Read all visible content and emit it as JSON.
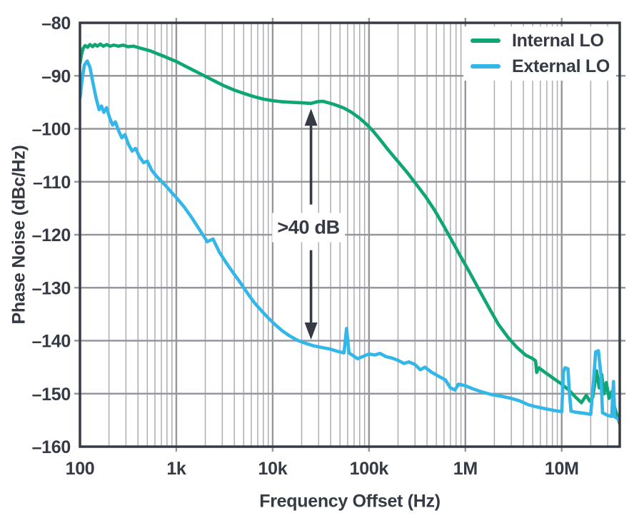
{
  "text_color": "#353a45",
  "chart_data": {
    "type": "line",
    "title": "",
    "xlabel": "Frequency Offset (Hz)",
    "ylabel": "Phase Noise (dBc/Hz)",
    "x_scale": "log",
    "xlim": [
      100,
      40000000
    ],
    "ylim": [
      -160,
      -80
    ],
    "grid": {
      "enabled": true,
      "minor_color": "#abadb1",
      "major_color": "#95979c"
    },
    "legend": {
      "position": "top-right-inside"
    },
    "x_ticks": [
      {
        "value": 100,
        "label": "100"
      },
      {
        "value": 1000,
        "label": "1k"
      },
      {
        "value": 10000,
        "label": "10k"
      },
      {
        "value": 100000,
        "label": "100k"
      },
      {
        "value": 1000000,
        "label": "1M"
      },
      {
        "value": 10000000,
        "label": "10M"
      }
    ],
    "y_ticks": [
      {
        "value": -80,
        "label": "–80"
      },
      {
        "value": -90,
        "label": "–90"
      },
      {
        "value": -100,
        "label": "–100"
      },
      {
        "value": -110,
        "label": "–110"
      },
      {
        "value": -120,
        "label": "–120"
      },
      {
        "value": -130,
        "label": "–130"
      },
      {
        "value": -140,
        "label": "–140"
      },
      {
        "value": -150,
        "label": "–150"
      },
      {
        "value": -160,
        "label": "–160"
      }
    ],
    "annotation": {
      "label": ">40 dB",
      "x": 25000,
      "top_db": -96.2,
      "bottom_db": -139.8,
      "label_db": -118.6,
      "color": "#353a45"
    },
    "series": [
      {
        "name": "Internal LO",
        "color": "#10a674",
        "points": [
          [
            100,
            -87.6
          ],
          [
            104,
            -85.9
          ],
          [
            108,
            -84.8
          ],
          [
            113,
            -84.3
          ],
          [
            120,
            -84.6
          ],
          [
            127,
            -84.1
          ],
          [
            135,
            -84.5
          ],
          [
            143,
            -84.1
          ],
          [
            152,
            -84.4
          ],
          [
            163,
            -84.0
          ],
          [
            175,
            -84.4
          ],
          [
            190,
            -84.1
          ],
          [
            205,
            -84.4
          ],
          [
            225,
            -84.2
          ],
          [
            250,
            -84.4
          ],
          [
            280,
            -84.2
          ],
          [
            315,
            -84.5
          ],
          [
            360,
            -84.4
          ],
          [
            410,
            -84.7
          ],
          [
            470,
            -85.0
          ],
          [
            540,
            -85.3
          ],
          [
            630,
            -85.8
          ],
          [
            740,
            -86.3
          ],
          [
            860,
            -86.8
          ],
          [
            1000,
            -87.3
          ],
          [
            1250,
            -88.2
          ],
          [
            1600,
            -89.2
          ],
          [
            2000,
            -90.1
          ],
          [
            2500,
            -91.0
          ],
          [
            3150,
            -91.9
          ],
          [
            4000,
            -92.7
          ],
          [
            5000,
            -93.3
          ],
          [
            6300,
            -93.9
          ],
          [
            8000,
            -94.4
          ],
          [
            10000,
            -94.7
          ],
          [
            12500,
            -94.9
          ],
          [
            16000,
            -95.0
          ],
          [
            20000,
            -95.1
          ],
          [
            25000,
            -95.2
          ],
          [
            29000,
            -94.9
          ],
          [
            33000,
            -94.8
          ],
          [
            38000,
            -95.1
          ],
          [
            45000,
            -95.5
          ],
          [
            55000,
            -96.1
          ],
          [
            66000,
            -96.9
          ],
          [
            80000,
            -98.0
          ],
          [
            95000,
            -99.2
          ],
          [
            110000,
            -100.4
          ],
          [
            130000,
            -102.0
          ],
          [
            160000,
            -104.1
          ],
          [
            200000,
            -106.2
          ],
          [
            250000,
            -108.3
          ],
          [
            310000,
            -110.5
          ],
          [
            390000,
            -112.9
          ],
          [
            480000,
            -115.4
          ],
          [
            590000,
            -118.2
          ],
          [
            720000,
            -121.0
          ],
          [
            880000,
            -123.9
          ],
          [
            1100000,
            -127.0
          ],
          [
            1400000,
            -130.5
          ],
          [
            1750000,
            -133.7
          ],
          [
            2200000,
            -136.9
          ],
          [
            2750000,
            -139.3
          ],
          [
            3400000,
            -141.2
          ],
          [
            4200000,
            -142.7
          ],
          [
            5000000,
            -143.4
          ],
          [
            5350000,
            -143.8
          ],
          [
            5500000,
            -146.0
          ],
          [
            5800000,
            -145.1
          ],
          [
            6500000,
            -145.8
          ],
          [
            7500000,
            -146.6
          ],
          [
            8800000,
            -147.5
          ],
          [
            10000000,
            -148.2
          ],
          [
            12000000,
            -149.4
          ],
          [
            14000000,
            -150.7
          ],
          [
            16000000,
            -151.7
          ],
          [
            18000000,
            -150.3
          ],
          [
            19500000,
            -151.4
          ],
          [
            21000000,
            -150.7
          ],
          [
            23000000,
            -145.7
          ],
          [
            24500000,
            -148.9
          ],
          [
            26000000,
            -146.4
          ],
          [
            27500000,
            -150.0
          ],
          [
            29000000,
            -147.9
          ],
          [
            31000000,
            -150.9
          ],
          [
            33000000,
            -149.6
          ],
          [
            35000000,
            -152.3
          ],
          [
            37000000,
            -153.7
          ],
          [
            40000000,
            -155.7
          ]
        ]
      },
      {
        "name": "External LO",
        "color": "#33b6e8",
        "points": [
          [
            100,
            -94.2
          ],
          [
            105,
            -90.8
          ],
          [
            111,
            -88.0
          ],
          [
            119,
            -87.2
          ],
          [
            127,
            -88.4
          ],
          [
            136,
            -91.2
          ],
          [
            147,
            -94.2
          ],
          [
            158,
            -96.4
          ],
          [
            167,
            -95.7
          ],
          [
            177,
            -96.9
          ],
          [
            189,
            -96.0
          ],
          [
            203,
            -97.9
          ],
          [
            218,
            -99.3
          ],
          [
            233,
            -98.7
          ],
          [
            252,
            -100.4
          ],
          [
            272,
            -101.7
          ],
          [
            293,
            -101.1
          ],
          [
            318,
            -102.9
          ],
          [
            348,
            -104.2
          ],
          [
            378,
            -103.7
          ],
          [
            415,
            -105.3
          ],
          [
            458,
            -106.4
          ],
          [
            500,
            -106.1
          ],
          [
            555,
            -107.8
          ],
          [
            620,
            -108.9
          ],
          [
            700,
            -109.9
          ],
          [
            800,
            -111.0
          ],
          [
            900,
            -112.1
          ],
          [
            1000,
            -113.0
          ],
          [
            1200,
            -114.7
          ],
          [
            1450,
            -116.8
          ],
          [
            1750,
            -119.1
          ],
          [
            2100,
            -121.3
          ],
          [
            2400,
            -120.8
          ],
          [
            2800,
            -123.3
          ],
          [
            3300,
            -125.3
          ],
          [
            3900,
            -127.2
          ],
          [
            4600,
            -129.0
          ],
          [
            5500,
            -131.1
          ],
          [
            6500,
            -132.9
          ],
          [
            7700,
            -134.4
          ],
          [
            9000,
            -135.7
          ],
          [
            10500,
            -136.9
          ],
          [
            12500,
            -138.1
          ],
          [
            15000,
            -139.1
          ],
          [
            18000,
            -139.9
          ],
          [
            22000,
            -140.5
          ],
          [
            27000,
            -141.0
          ],
          [
            33000,
            -141.3
          ],
          [
            40000,
            -141.6
          ],
          [
            47000,
            -142.0
          ],
          [
            55000,
            -142.3
          ],
          [
            58500,
            -137.7
          ],
          [
            62000,
            -142.3
          ],
          [
            68000,
            -142.8
          ],
          [
            76000,
            -143.4
          ],
          [
            86000,
            -143.0
          ],
          [
            100000,
            -142.5
          ],
          [
            115000,
            -142.7
          ],
          [
            130000,
            -142.4
          ],
          [
            150000,
            -143.0
          ],
          [
            175000,
            -143.3
          ],
          [
            200000,
            -143.7
          ],
          [
            230000,
            -144.3
          ],
          [
            260000,
            -144.0
          ],
          [
            300000,
            -144.5
          ],
          [
            340000,
            -145.5
          ],
          [
            380000,
            -145.0
          ],
          [
            450000,
            -146.0
          ],
          [
            550000,
            -146.9
          ],
          [
            620000,
            -147.4
          ],
          [
            700000,
            -148.9
          ],
          [
            780000,
            -149.3
          ],
          [
            850000,
            -148.2
          ],
          [
            1000000,
            -148.5
          ],
          [
            1200000,
            -149.1
          ],
          [
            1500000,
            -149.7
          ],
          [
            1900000,
            -150.2
          ],
          [
            2400000,
            -150.5
          ],
          [
            3000000,
            -150.9
          ],
          [
            3700000,
            -151.4
          ],
          [
            4500000,
            -152.1
          ],
          [
            5500000,
            -152.5
          ],
          [
            7000000,
            -152.9
          ],
          [
            8500000,
            -153.2
          ],
          [
            10000000,
            -153.4
          ],
          [
            10400000,
            -146.0
          ],
          [
            10800000,
            -145.1
          ],
          [
            11600000,
            -145.3
          ],
          [
            12000000,
            -149.6
          ],
          [
            12500000,
            -153.3
          ],
          [
            14000000,
            -153.5
          ],
          [
            17000000,
            -153.7
          ],
          [
            20000000,
            -153.9
          ],
          [
            21500000,
            -147.1
          ],
          [
            22500000,
            -142.1
          ],
          [
            24000000,
            -141.9
          ],
          [
            25500000,
            -146.3
          ],
          [
            26500000,
            -153.6
          ],
          [
            30000000,
            -154.1
          ],
          [
            33000000,
            -154.3
          ],
          [
            34500000,
            -147.7
          ],
          [
            35500000,
            -154.4
          ],
          [
            38000000,
            -154.7
          ],
          [
            40000000,
            -155.3
          ]
        ]
      }
    ]
  }
}
